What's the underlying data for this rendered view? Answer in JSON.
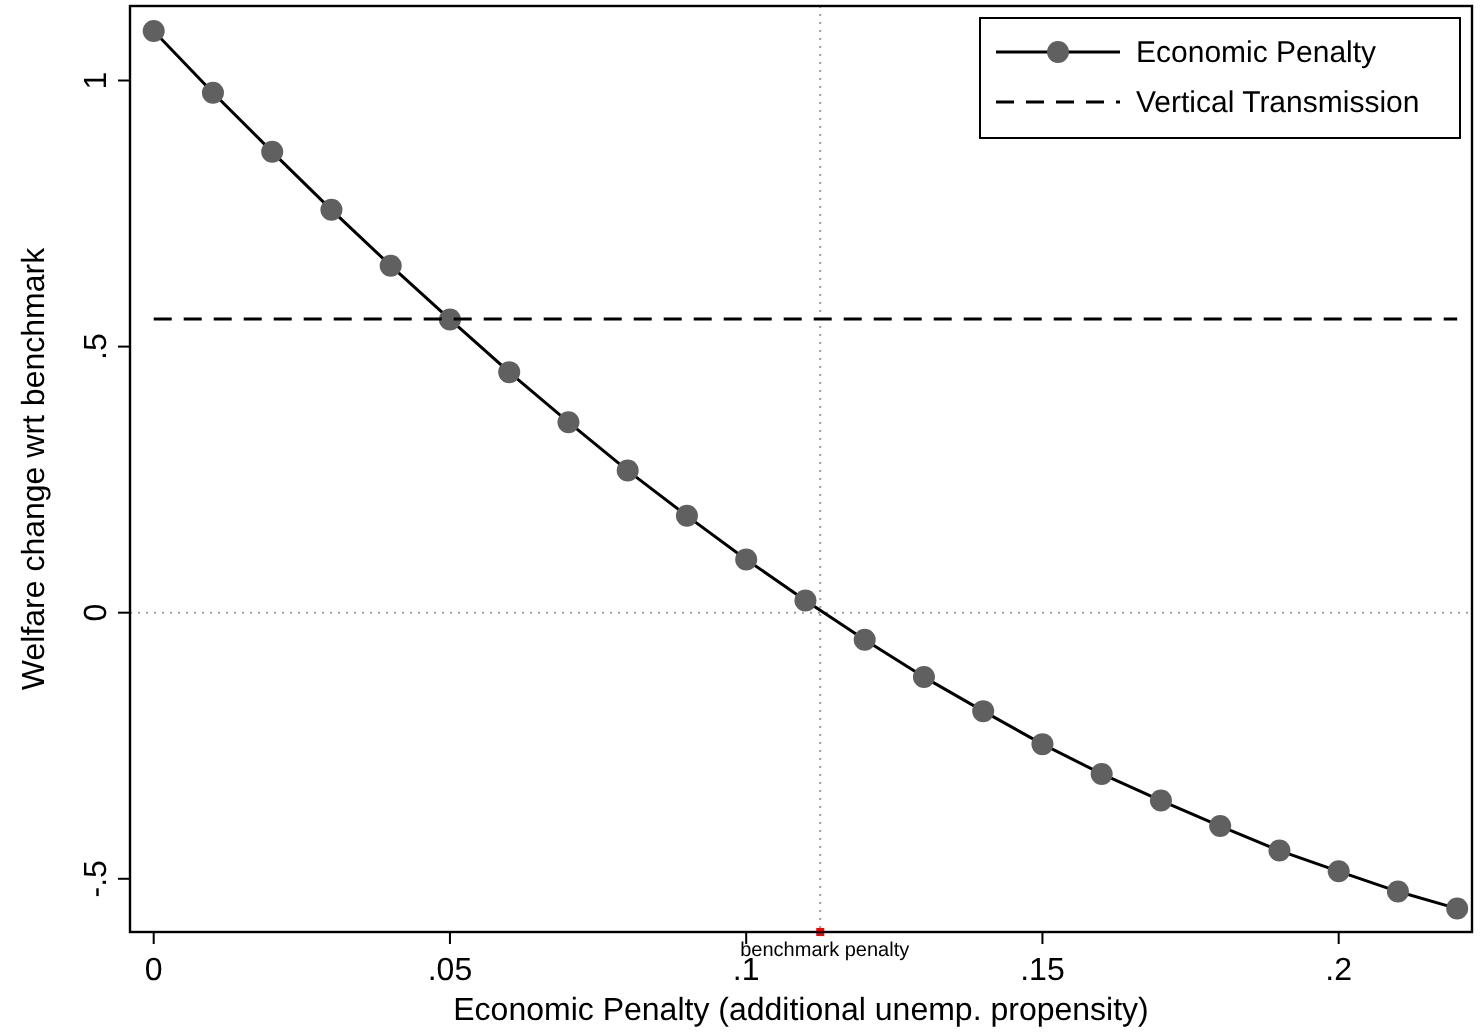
{
  "chart_data": {
    "type": "line",
    "xlabel": "Economic Penalty (additional unemp. propensity)",
    "ylabel": "Welfare change wrt benchmark",
    "xlim": [
      -0.004,
      0.2225
    ],
    "ylim": [
      -0.6,
      1.14
    ],
    "xticks": [
      {
        "value": 0,
        "label": "0"
      },
      {
        "value": 0.05,
        "label": ".05"
      },
      {
        "value": 0.1,
        "label": ".1"
      },
      {
        "value": 0.15,
        "label": ".15"
      },
      {
        "value": 0.2,
        "label": ".2"
      }
    ],
    "yticks": [
      {
        "value": -0.5,
        "label": "-.5"
      },
      {
        "value": 0,
        "label": "0"
      },
      {
        "value": 0.5,
        "label": ".5"
      },
      {
        "value": 1,
        "label": "1"
      }
    ],
    "x": [
      0,
      0.01,
      0.02,
      0.03,
      0.04,
      0.05,
      0.06,
      0.07,
      0.08,
      0.09,
      0.1,
      0.11,
      0.12,
      0.13,
      0.14,
      0.15,
      0.16,
      0.17,
      0.18,
      0.19,
      0.2,
      0.21,
      0.22
    ],
    "series": [
      {
        "name": "Economic Penalty",
        "color": "#000000",
        "marker": "circle",
        "line_style": "solid",
        "values": [
          1.093,
          0.977,
          0.866,
          0.757,
          0.652,
          0.551,
          0.452,
          0.358,
          0.267,
          0.182,
          0.1,
          0.023,
          -0.051,
          -0.121,
          -0.185,
          -0.247,
          -0.303,
          -0.353,
          -0.401,
          -0.447,
          -0.486,
          -0.524,
          -0.556
        ]
      },
      {
        "name": "Vertical Transmission",
        "color": "#000000",
        "marker": "none",
        "line_style": "dashed",
        "x": [
          0,
          0.22
        ],
        "values": [
          0.552,
          0.552
        ]
      }
    ],
    "ref_lines": [
      {
        "axis": "y",
        "value": 0,
        "label": null,
        "color": "#a0a0a0",
        "line_style": "dotted"
      },
      {
        "axis": "x",
        "value": 0.1125,
        "label": "benchmark penalty",
        "color": "#a0a0a0",
        "line_style": "dotted"
      }
    ],
    "legend": "top right",
    "grid": false
  }
}
